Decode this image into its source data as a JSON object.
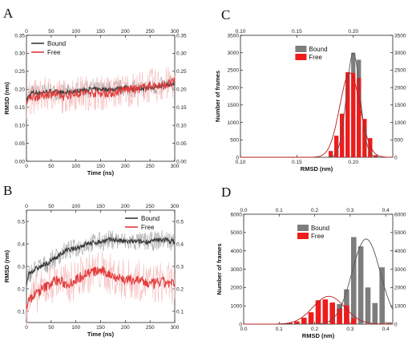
{
  "colors": {
    "bound": "#3a3a3a",
    "bound_band": "#9a9a9a",
    "free": "#e23b3b",
    "free_band": "#f6b3b3",
    "hist_bound": "#7d7d7d",
    "hist_free": "#ee1c1c",
    "fit_free": "#b21f1f",
    "fit_bound": "#555555"
  },
  "chart_data": [
    {
      "panel": "A",
      "type": "line",
      "xlabel": "Time (ns)",
      "ylabel": "RMSD (nm)",
      "xlim": [
        0,
        300
      ],
      "ylim": [
        0.0,
        0.35
      ],
      "xticks": [
        "0",
        "50",
        "100",
        "150",
        "200",
        "250",
        "300"
      ],
      "yticks": [
        "0.00",
        "0.05",
        "0.10",
        "0.15",
        "0.20",
        "0.25",
        "0.30",
        "0.35"
      ],
      "legend_position": "top-left",
      "series": [
        {
          "name": "Bound",
          "x": [
            0,
            10,
            25,
            50,
            75,
            100,
            125,
            150,
            175,
            200,
            225,
            250,
            275,
            300
          ],
          "values": [
            0.17,
            0.19,
            0.19,
            0.195,
            0.19,
            0.195,
            0.2,
            0.2,
            0.2,
            0.205,
            0.2,
            0.205,
            0.21,
            0.215
          ]
        },
        {
          "name": "Free",
          "x": [
            0,
            10,
            25,
            50,
            75,
            100,
            125,
            150,
            175,
            200,
            225,
            250,
            275,
            300
          ],
          "values": [
            0.16,
            0.18,
            0.18,
            0.19,
            0.18,
            0.19,
            0.19,
            0.19,
            0.19,
            0.2,
            0.2,
            0.21,
            0.21,
            0.22
          ]
        }
      ]
    },
    {
      "panel": "B",
      "type": "line",
      "xlabel": "Time (ns)",
      "ylabel": "RMSD (nm)",
      "xlim": [
        0,
        300
      ],
      "ylim": [
        0.05,
        0.55
      ],
      "xticks": [
        "0",
        "50",
        "100",
        "150",
        "200",
        "250",
        "300"
      ],
      "yticks": [
        "0.1",
        "0.2",
        "0.3",
        "0.4",
        "0.5"
      ],
      "legend_position": "top-right",
      "series": [
        {
          "name": "Bound",
          "x": [
            0,
            5,
            20,
            40,
            60,
            80,
            100,
            120,
            150,
            175,
            200,
            225,
            250,
            275,
            300
          ],
          "values": [
            0.22,
            0.27,
            0.29,
            0.31,
            0.34,
            0.37,
            0.38,
            0.4,
            0.41,
            0.42,
            0.41,
            0.41,
            0.41,
            0.42,
            0.41
          ]
        },
        {
          "name": "Free",
          "x": [
            0,
            5,
            20,
            40,
            60,
            80,
            100,
            120,
            150,
            175,
            200,
            225,
            250,
            275,
            300
          ],
          "values": [
            0.12,
            0.15,
            0.18,
            0.21,
            0.24,
            0.22,
            0.24,
            0.27,
            0.28,
            0.26,
            0.24,
            0.24,
            0.22,
            0.23,
            0.22
          ]
        }
      ]
    },
    {
      "panel": "C",
      "type": "bar",
      "xlabel": "RMSD (nm)",
      "ylabel": "Number of frames",
      "xlim": [
        0.1,
        0.235
      ],
      "ylim": [
        0,
        3500
      ],
      "xticks": [
        "0.10",
        "0.15",
        "0.20"
      ],
      "yticks": [
        "0",
        "500",
        "1000",
        "1500",
        "2000",
        "2500",
        "3000",
        "3500"
      ],
      "bin_width": 0.005,
      "legend_position": "top-left",
      "series": [
        {
          "name": "Bound",
          "x": [
            0.185,
            0.19,
            0.195,
            0.2,
            0.205,
            0.21,
            0.215,
            0.22
          ],
          "values": [
            120,
            620,
            2000,
            3000,
            2800,
            900,
            140,
            10
          ],
          "fit": {
            "mean": 0.2,
            "sigma": 0.006,
            "peak": 3000
          }
        },
        {
          "name": "Free",
          "x": [
            0.18,
            0.185,
            0.19,
            0.195,
            0.2,
            0.205,
            0.21,
            0.215,
            0.22
          ],
          "values": [
            180,
            620,
            1250,
            2440,
            2420,
            2280,
            1100,
            550,
            60
          ],
          "fit": {
            "mean": 0.197,
            "sigma": 0.009,
            "peak": 2420
          }
        }
      ]
    },
    {
      "panel": "D",
      "type": "bar",
      "xlabel": "RMSD (nm)",
      "ylabel": "Number of frames",
      "xlim": [
        0.0,
        0.42
      ],
      "ylim": [
        0,
        6000
      ],
      "xticks": [
        "0.0",
        "0.1",
        "0.2",
        "0.3",
        "0.4"
      ],
      "yticks": [
        "0",
        "1000",
        "2000",
        "3000",
        "4000",
        "5000",
        "6000"
      ],
      "bin_width": 0.02,
      "legend_position": "top-left",
      "series": [
        {
          "name": "Bound",
          "x": [
            0.27,
            0.29,
            0.31,
            0.33,
            0.35,
            0.37,
            0.39,
            0.41
          ],
          "values": [
            1100,
            1900,
            4750,
            4250,
            2000,
            1150,
            3100,
            100
          ],
          "fit": {
            "mean": 0.345,
            "sigma": 0.04,
            "peak": 4650
          }
        },
        {
          "name": "Free",
          "x": [
            0.11,
            0.13,
            0.15,
            0.17,
            0.19,
            0.21,
            0.23,
            0.25,
            0.27,
            0.29,
            0.31
          ],
          "values": [
            30,
            80,
            150,
            350,
            650,
            1300,
            1350,
            1180,
            850,
            1020,
            320
          ],
          "fit": {
            "mean": 0.24,
            "sigma": 0.045,
            "peak": 1520
          }
        }
      ]
    }
  ],
  "labels": {
    "A": "A",
    "B": "B",
    "C": "C",
    "D": "D"
  }
}
